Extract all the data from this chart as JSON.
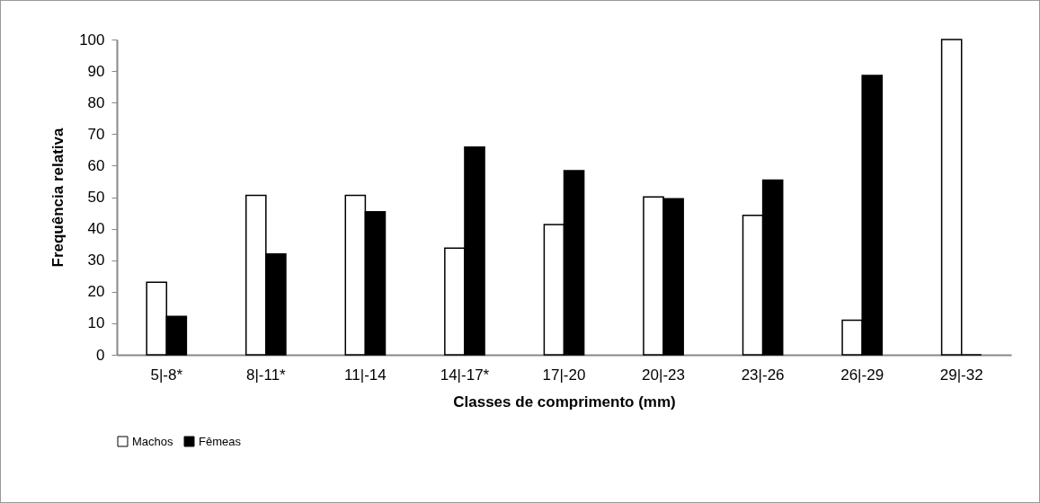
{
  "chart_data": {
    "type": "bar",
    "xlabel": "Classes de comprimento (mm)",
    "ylabel": "Frequência relativa",
    "categories": [
      "5|-8*",
      "8|-11*",
      "11|-14",
      "14|-17*",
      "17|-20",
      "20|-23",
      "23|-26",
      "26|-29",
      "29|-32"
    ],
    "series": [
      {
        "name": "Machos",
        "color": "#ffffff",
        "values": [
          23,
          50.6,
          50.6,
          33.8,
          41.3,
          50.1,
          44.2,
          11,
          100
        ]
      },
      {
        "name": "Fêmeas",
        "color": "#000000",
        "values": [
          12.2,
          32,
          45.4,
          65.9,
          58.4,
          49.5,
          55.4,
          88.6,
          0
        ]
      }
    ],
    "ylim": [
      0,
      100
    ],
    "yticks": [
      0,
      10,
      20,
      30,
      40,
      50,
      60,
      70,
      80,
      90,
      100
    ],
    "grid": false,
    "legend": "bottom"
  }
}
